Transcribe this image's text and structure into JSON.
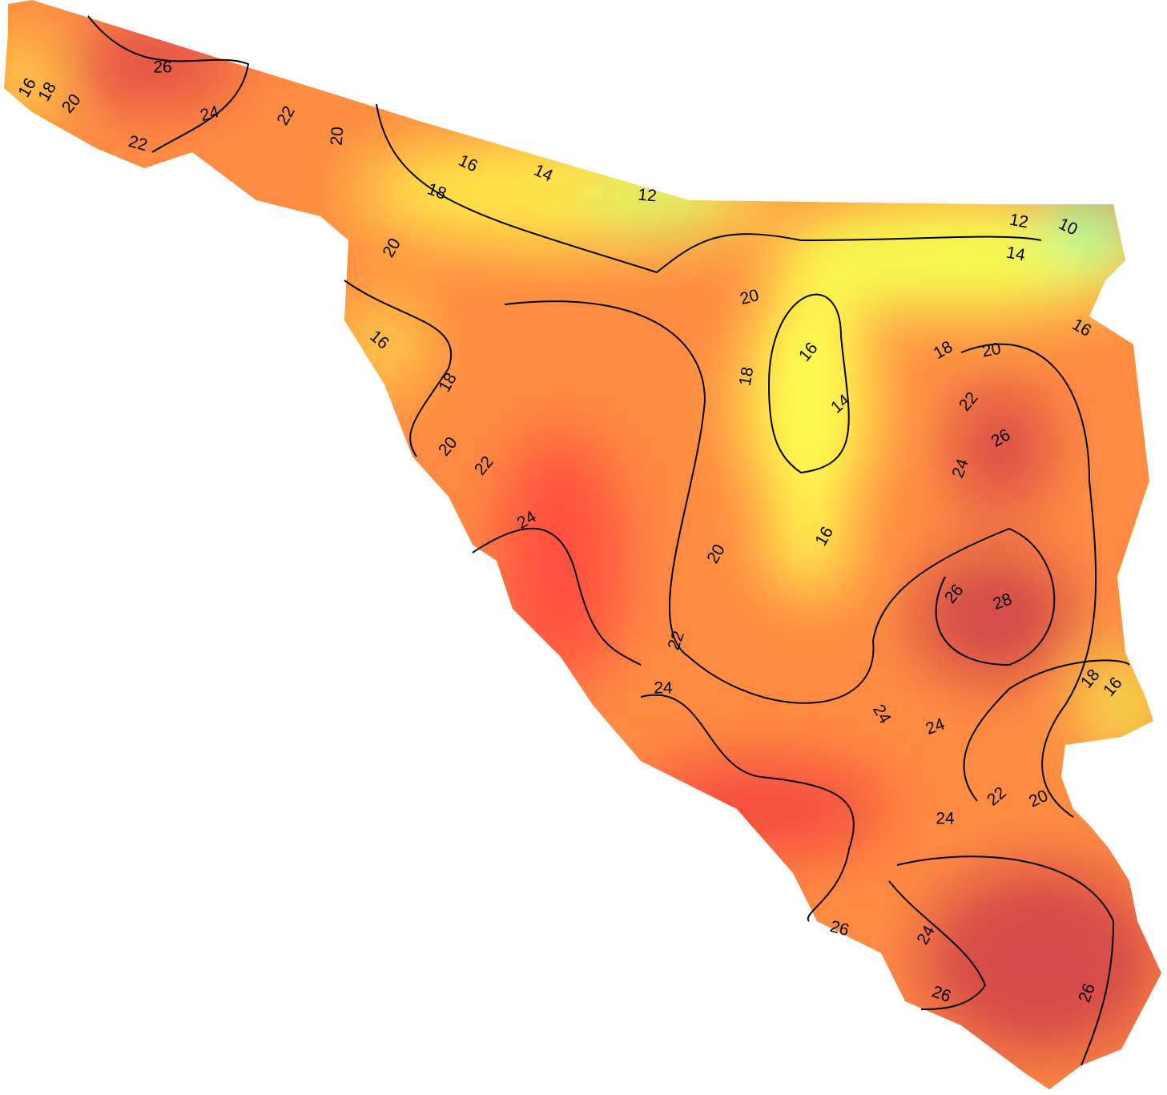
{
  "contour_labels": [
    16,
    18,
    20,
    26,
    24,
    22,
    22,
    20,
    16,
    14,
    12,
    18,
    20,
    16,
    18,
    20,
    22,
    24,
    20,
    16,
    18,
    14,
    16,
    20,
    22,
    24,
    12,
    10,
    14,
    16,
    18,
    20,
    22,
    26,
    24,
    26,
    28,
    18,
    16,
    24,
    24,
    22,
    20,
    24,
    26,
    24,
    26,
    26
  ]
}
